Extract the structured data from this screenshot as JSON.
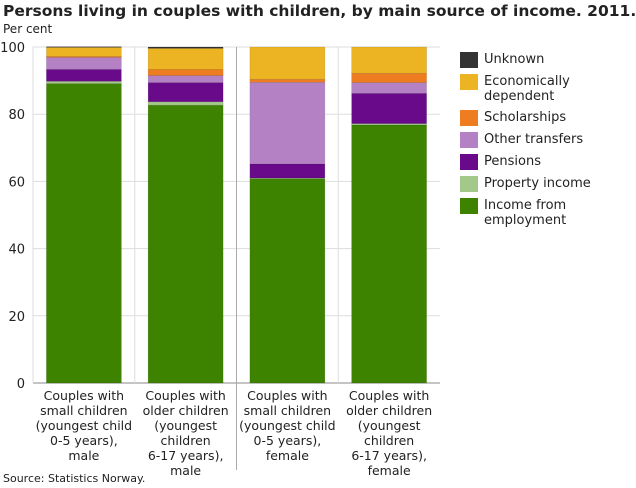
{
  "chart_data": {
    "type": "bar",
    "stacked": true,
    "title": "Persons living in couples with children, by main source of income. 2011.",
    "ylabel": "Per cent",
    "ylim": [
      0,
      100
    ],
    "yticks": [
      0,
      20,
      40,
      60,
      80,
      100
    ],
    "grid": true,
    "legend_placement": "right",
    "categories": [
      "Couples with small children (youngest child 0-5 years), male",
      "Couples with older children (youngest children 6-17 years), male",
      "Couples with small children (youngest child 0-5 years), female",
      "Couples with older children (youngest children 6-17 years), female"
    ],
    "category_lines": [
      [
        "Couples with",
        "small children",
        "(youngest child",
        "0-5 years),",
        "male"
      ],
      [
        "Couples with",
        "older children",
        "(youngest",
        "children",
        "6-17 years),",
        "male"
      ],
      [
        "Couples with",
        "small children",
        "(youngest child",
        "0-5 years),",
        "female"
      ],
      [
        "Couples with",
        "older children",
        "(youngest",
        "children",
        "6-17 years),",
        "female"
      ]
    ],
    "series": [
      {
        "name": "Income from employment",
        "color": "#3d8300",
        "values": [
          89.1,
          82.7,
          60.8,
          76.8
        ]
      },
      {
        "name": "Property income",
        "color": "#a2c98a",
        "values": [
          0.7,
          1.0,
          0.2,
          0.4
        ]
      },
      {
        "name": "Pensions",
        "color": "#680a89",
        "values": [
          3.5,
          5.7,
          4.2,
          9.0
        ]
      },
      {
        "name": "Other transfers",
        "color": "#b482c4",
        "values": [
          3.6,
          2.1,
          24.3,
          3.2
        ]
      },
      {
        "name": "Scholarships",
        "color": "#ee7d22",
        "values": [
          0.3,
          1.8,
          0.9,
          2.8
        ]
      },
      {
        "name": "Economically dependent",
        "color": "#ecb422",
        "values": [
          2.7,
          6.3,
          9.6,
          7.8
        ]
      },
      {
        "name": "Unknown",
        "color": "#333333",
        "values": [
          0.2,
          0.4,
          0,
          0
        ]
      }
    ]
  },
  "source": "Source: Statistics Norway."
}
